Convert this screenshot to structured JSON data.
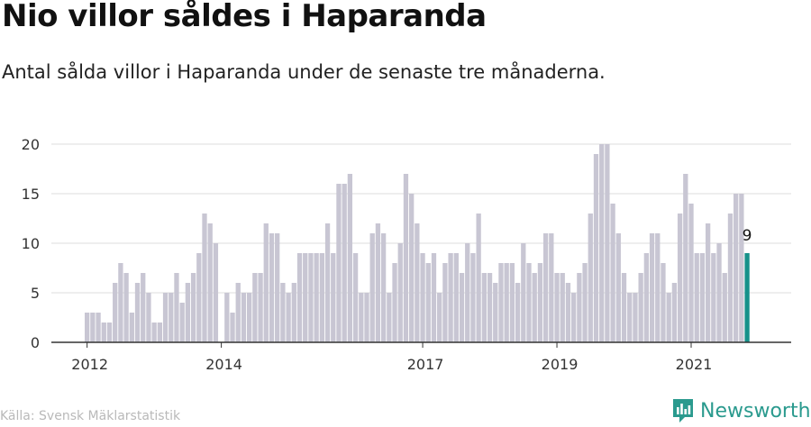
{
  "header": {
    "title": "Nio villor såldes i Haparanda",
    "subtitle": "Antal sålda villor i Haparanda under de senaste tre månaderna."
  },
  "footer": {
    "source": "Källa: Svensk Mäklarstatistik",
    "brand": "Newsworthy",
    "brand_icon": "newsworthy-logo-icon"
  },
  "colors": {
    "bar": "#c8c6d3",
    "highlight": "#16918a",
    "grid": "#dcdcdc",
    "axis": "#333333",
    "brand": "#2a9a8e"
  },
  "chart_data": {
    "type": "bar",
    "x_tick_labels": [
      "2012",
      "2014",
      "2017",
      "2019",
      "2021"
    ],
    "ylim": [
      0,
      20
    ],
    "y_ticks": [
      0,
      5,
      10,
      15,
      20
    ],
    "grid": true,
    "highlight_last": true,
    "last_value_label": "9",
    "values": [
      3,
      3,
      3,
      2,
      2,
      6,
      8,
      7,
      3,
      6,
      7,
      5,
      2,
      2,
      5,
      5,
      7,
      4,
      6,
      7,
      9,
      13,
      12,
      10,
      0,
      5,
      3,
      6,
      5,
      5,
      7,
      7,
      12,
      11,
      11,
      6,
      5,
      6,
      9,
      9,
      9,
      9,
      9,
      12,
      9,
      16,
      16,
      17,
      9,
      5,
      5,
      11,
      12,
      11,
      5,
      8,
      10,
      17,
      15,
      12,
      9,
      8,
      9,
      5,
      8,
      9,
      9,
      7,
      10,
      9,
      13,
      7,
      7,
      6,
      8,
      8,
      8,
      6,
      10,
      8,
      7,
      8,
      11,
      11,
      7,
      7,
      6,
      5,
      7,
      8,
      13,
      19,
      20,
      20,
      14,
      11,
      7,
      5,
      5,
      7,
      9,
      11,
      11,
      8,
      5,
      6,
      13,
      17,
      14,
      9,
      9,
      12,
      9,
      10,
      7,
      13,
      15,
      15,
      9
    ]
  }
}
